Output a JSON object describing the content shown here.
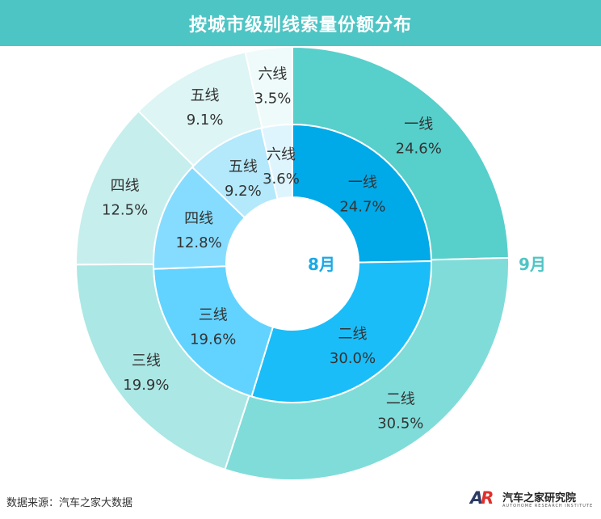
{
  "title": "按城市级别线索量份额分布",
  "source": "数据来源：汽车之家大数据",
  "brand": {
    "mark_a": "A",
    "mark_r": "R",
    "name": "汽车之家研究院",
    "sub": "AUTOHOME RESEARCH INSTITUTE"
  },
  "chart_data": {
    "type": "pie",
    "subtype": "nested-donut",
    "categories": [
      "一线",
      "二线",
      "三线",
      "四线",
      "五线",
      "六线"
    ],
    "series": [
      {
        "name": "8月",
        "ring": "inner",
        "values": [
          24.7,
          30.0,
          19.6,
          12.8,
          9.2,
          3.6
        ],
        "value_labels": [
          "24.7%",
          "30.0%",
          "19.6%",
          "12.8%",
          "9.2%",
          "3.6%"
        ],
        "colors": [
          "#00a9e7",
          "#1abdf8",
          "#62d3ff",
          "#86dcff",
          "#b4e8fb",
          "#dff5fd"
        ]
      },
      {
        "name": "9月",
        "ring": "outer",
        "values": [
          24.6,
          30.5,
          19.9,
          12.5,
          9.1,
          3.5
        ],
        "value_labels": [
          "24.6%",
          "30.5%",
          "19.9%",
          "12.5%",
          "9.1%",
          "3.5%"
        ],
        "colors": [
          "#57cfcb",
          "#7fdcd9",
          "#abe7e4",
          "#c6eeec",
          "#ddf5f4",
          "#eefbfa"
        ]
      }
    ],
    "label_colors": {
      "8月": "#1aa9e6",
      "9月": "#4dc5c4"
    }
  }
}
